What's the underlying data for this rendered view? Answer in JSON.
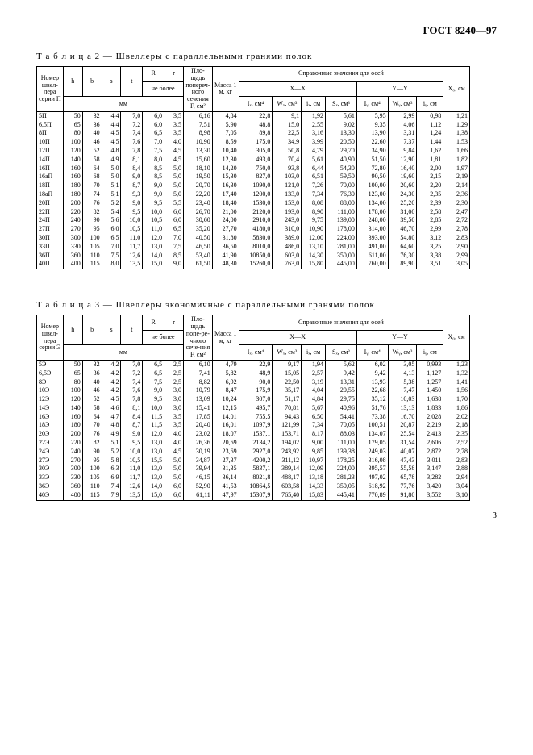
{
  "doc_header": "ГОСТ 8240—97",
  "table2": {
    "caption_prefix": "Т а б л и ц а 2",
    "caption_text": " — Швеллеры с параллельными гранями полок",
    "col_labels": {
      "series": "Номер швел-лера серии П",
      "h": "h",
      "b": "b",
      "s": "s",
      "t": "t",
      "R": "R",
      "r": "r",
      "area": "Пло-щадь попереч-ного сечения F, см²",
      "mass": "Масса 1 м, кг",
      "axes": "Справочные значения для осей",
      "xx": "X—X",
      "yy": "Y—Y",
      "x0": "X₀, см",
      "mm": "мм",
      "ne_bolee": "не более",
      "Ix": "Iₓ, см⁴",
      "Wx": "Wₓ, см³",
      "ix": "iₓ, см",
      "Sx": "Sₓ, см³",
      "Iy": "Iᵧ, см⁴",
      "Wy": "Wᵧ, см³",
      "iy": "iᵧ, см"
    },
    "rows": [
      [
        "5П",
        "50",
        "32",
        "4,4",
        "7,0",
        "6,0",
        "3,5",
        "6,16",
        "4,84",
        "22,8",
        "9,1",
        "1,92",
        "5,61",
        "5,95",
        "2,99",
        "0,98",
        "1,21"
      ],
      [
        "6,5П",
        "65",
        "36",
        "4,4",
        "7,2",
        "6,0",
        "3,5",
        "7,51",
        "5,90",
        "48,8",
        "15,0",
        "2,55",
        "9,02",
        "9,35",
        "4,06",
        "1,12",
        "1,29"
      ],
      [
        "8П",
        "80",
        "40",
        "4,5",
        "7,4",
        "6,5",
        "3,5",
        "8,98",
        "7,05",
        "89,8",
        "22,5",
        "3,16",
        "13,30",
        "13,90",
        "3,31",
        "1,24",
        "1,38"
      ],
      [
        "10П",
        "100",
        "46",
        "4,5",
        "7,6",
        "7,0",
        "4,0",
        "10,90",
        "8,59",
        "175,0",
        "34,9",
        "3,99",
        "20,50",
        "22,60",
        "7,37",
        "1,44",
        "1,53"
      ],
      [
        "12П",
        "120",
        "52",
        "4,8",
        "7,8",
        "7,5",
        "4,5",
        "13,30",
        "10,40",
        "305,0",
        "50,8",
        "4,79",
        "29,70",
        "34,90",
        "9,84",
        "1,62",
        "1,66"
      ],
      [
        "14П",
        "140",
        "58",
        "4,9",
        "8,1",
        "8,0",
        "4,5",
        "15,60",
        "12,30",
        "493,0",
        "70,4",
        "5,61",
        "40,90",
        "51,50",
        "12,90",
        "1,81",
        "1,82"
      ],
      [
        "16П",
        "160",
        "64",
        "5,0",
        "8,4",
        "8,5",
        "5,0",
        "18,10",
        "14,20",
        "750,0",
        "93,8",
        "6,44",
        "54,30",
        "72,80",
        "16,40",
        "2,00",
        "1,97"
      ],
      [
        "16аП",
        "160",
        "68",
        "5,0",
        "9,0",
        "8,5",
        "5,0",
        "19,50",
        "15,30",
        "827,0",
        "103,0",
        "6,51",
        "59,50",
        "90,50",
        "19,60",
        "2,15",
        "2,19"
      ],
      [
        "18П",
        "180",
        "70",
        "5,1",
        "8,7",
        "9,0",
        "5,0",
        "20,70",
        "16,30",
        "1090,0",
        "121,0",
        "7,26",
        "70,00",
        "100,00",
        "20,60",
        "2,20",
        "2,14"
      ],
      [
        "18аП",
        "180",
        "74",
        "5,1",
        "9,3",
        "9,0",
        "5,0",
        "22,20",
        "17,40",
        "1200,0",
        "133,0",
        "7,34",
        "76,30",
        "123,00",
        "24,30",
        "2,35",
        "2,36"
      ],
      [
        "20П",
        "200",
        "76",
        "5,2",
        "9,0",
        "9,5",
        "5,5",
        "23,40",
        "18,40",
        "1530,0",
        "153,0",
        "8,08",
        "88,00",
        "134,00",
        "25,20",
        "2,39",
        "2,30"
      ],
      [
        "22П",
        "220",
        "82",
        "5,4",
        "9,5",
        "10,0",
        "6,0",
        "26,70",
        "21,00",
        "2120,0",
        "193,0",
        "8,90",
        "111,00",
        "178,00",
        "31,00",
        "2,58",
        "2,47"
      ],
      [
        "24П",
        "240",
        "90",
        "5,6",
        "10,0",
        "10,5",
        "6,0",
        "30,60",
        "24,00",
        "2910,0",
        "243,0",
        "9,75",
        "139,00",
        "248,00",
        "39,50",
        "2,85",
        "2,72"
      ],
      [
        "27П",
        "270",
        "95",
        "6,0",
        "10,5",
        "11,0",
        "6,5",
        "35,20",
        "27,70",
        "4180,0",
        "310,0",
        "10,90",
        "178,00",
        "314,00",
        "46,70",
        "2,99",
        "2,78"
      ],
      [
        "30П",
        "300",
        "100",
        "6,5",
        "11,0",
        "12,0",
        "7,0",
        "40,50",
        "31,80",
        "5830,0",
        "389,0",
        "12,00",
        "224,00",
        "393,00",
        "54,80",
        "3,12",
        "2,83"
      ],
      [
        "33П",
        "330",
        "105",
        "7,0",
        "11,7",
        "13,0",
        "7,5",
        "46,50",
        "36,50",
        "8010,0",
        "486,0",
        "13,10",
        "281,00",
        "491,00",
        "64,60",
        "3,25",
        "2,90"
      ],
      [
        "36П",
        "360",
        "110",
        "7,5",
        "12,6",
        "14,0",
        "8,5",
        "53,40",
        "41,90",
        "10850,0",
        "603,0",
        "14,30",
        "350,00",
        "611,00",
        "76,30",
        "3,38",
        "2,99"
      ],
      [
        "40П",
        "400",
        "115",
        "8,0",
        "13,5",
        "15,0",
        "9,0",
        "61,50",
        "48,30",
        "15260,0",
        "763,0",
        "15,80",
        "445,00",
        "760,00",
        "89,90",
        "3,51",
        "3,05"
      ]
    ]
  },
  "table3": {
    "caption_prefix": "Т а б л и ц а 3",
    "caption_text": " — Швеллеры экономичные с параллельными гранями полок",
    "col_labels": {
      "series": "Номер швел-лера серии Э",
      "area": "Пло-щадь попе-ре-чного сече-ния F, см²"
    },
    "rows": [
      [
        "5Э",
        "50",
        "32",
        "4,2",
        "7,0",
        "6,5",
        "2,5",
        "6,10",
        "4,79",
        "22,9",
        "9,17",
        "1,94",
        "5,62",
        "6,02",
        "3,05",
        "0,993",
        "1,23"
      ],
      [
        "6,5Э",
        "65",
        "36",
        "4,2",
        "7,2",
        "6,5",
        "2,5",
        "7,41",
        "5,82",
        "48,9",
        "15,05",
        "2,57",
        "9,42",
        "9,42",
        "4,13",
        "1,127",
        "1,32"
      ],
      [
        "8Э",
        "80",
        "40",
        "4,2",
        "7,4",
        "7,5",
        "2,5",
        "8,82",
        "6,92",
        "90,0",
        "22,50",
        "3,19",
        "13,31",
        "13,93",
        "5,38",
        "1,257",
        "1,41"
      ],
      [
        "10Э",
        "100",
        "46",
        "4,2",
        "7,6",
        "9,0",
        "3,0",
        "10,79",
        "8,47",
        "175,9",
        "35,17",
        "4,04",
        "20,55",
        "22,68",
        "7,47",
        "1,450",
        "1,56"
      ],
      [
        "12Э",
        "120",
        "52",
        "4,5",
        "7,8",
        "9,5",
        "3,0",
        "13,09",
        "10,24",
        "307,0",
        "51,17",
        "4,84",
        "29,75",
        "35,12",
        "10,03",
        "1,638",
        "1,70"
      ],
      [
        "14Э",
        "140",
        "58",
        "4,6",
        "8,1",
        "10,0",
        "3,0",
        "15,41",
        "12,15",
        "495,7",
        "70,81",
        "5,67",
        "40,96",
        "51,76",
        "13,13",
        "1,833",
        "1,86"
      ],
      [
        "16Э",
        "160",
        "64",
        "4,7",
        "8,4",
        "11,5",
        "3,5",
        "17,85",
        "14,01",
        "755,5",
        "94,43",
        "6,50",
        "54,41",
        "73,38",
        "16,70",
        "2,028",
        "2,02"
      ],
      [
        "18Э",
        "180",
        "70",
        "4,8",
        "8,7",
        "11,5",
        "3,5",
        "20,40",
        "16,01",
        "1097,9",
        "121,99",
        "7,34",
        "70,05",
        "100,51",
        "20,87",
        "2,219",
        "2,18"
      ],
      [
        "20Э",
        "200",
        "76",
        "4,9",
        "9,0",
        "12,0",
        "4,0",
        "23,02",
        "18,07",
        "1537,1",
        "153,71",
        "8,17",
        "88,03",
        "134,07",
        "25,54",
        "2,413",
        "2,35"
      ],
      [
        "22Э",
        "220",
        "82",
        "5,1",
        "9,5",
        "13,0",
        "4,0",
        "26,36",
        "20,69",
        "2134,2",
        "194,02",
        "9,00",
        "111,00",
        "179,05",
        "31,54",
        "2,606",
        "2,52"
      ],
      [
        "24Э",
        "240",
        "90",
        "5,2",
        "10,0",
        "13,0",
        "4,5",
        "30,19",
        "23,69",
        "2927,0",
        "243,92",
        "9,85",
        "139,38",
        "249,03",
        "40,07",
        "2,872",
        "2,78"
      ],
      [
        "27Э",
        "270",
        "95",
        "5,8",
        "10,5",
        "15,5",
        "5,0",
        "34,87",
        "27,37",
        "4200,2",
        "311,12",
        "10,97",
        "178,25",
        "316,08",
        "47,43",
        "3,011",
        "2,83"
      ],
      [
        "30Э",
        "300",
        "100",
        "6,3",
        "11,0",
        "13,0",
        "5,0",
        "39,94",
        "31,35",
        "5837,1",
        "389,14",
        "12,09",
        "224,00",
        "395,57",
        "55,58",
        "3,147",
        "2,88"
      ],
      [
        "33Э",
        "330",
        "105",
        "6,9",
        "11,7",
        "13,0",
        "5,0",
        "46,15",
        "36,14",
        "8021,8",
        "488,17",
        "13,18",
        "281,23",
        "497,02",
        "65,78",
        "3,282",
        "2,94"
      ],
      [
        "36Э",
        "360",
        "110",
        "7,4",
        "12,6",
        "14,0",
        "6,0",
        "52,90",
        "41,53",
        "10864,5",
        "603,58",
        "14,33",
        "350,05",
        "618,92",
        "77,76",
        "3,420",
        "3,04"
      ],
      [
        "40Э",
        "400",
        "115",
        "7,9",
        "13,5",
        "15,0",
        "6,0",
        "61,11",
        "47,97",
        "15307,9",
        "765,40",
        "15,83",
        "445,41",
        "770,89",
        "91,80",
        "3,552",
        "3,10"
      ]
    ]
  },
  "page_number": "3"
}
